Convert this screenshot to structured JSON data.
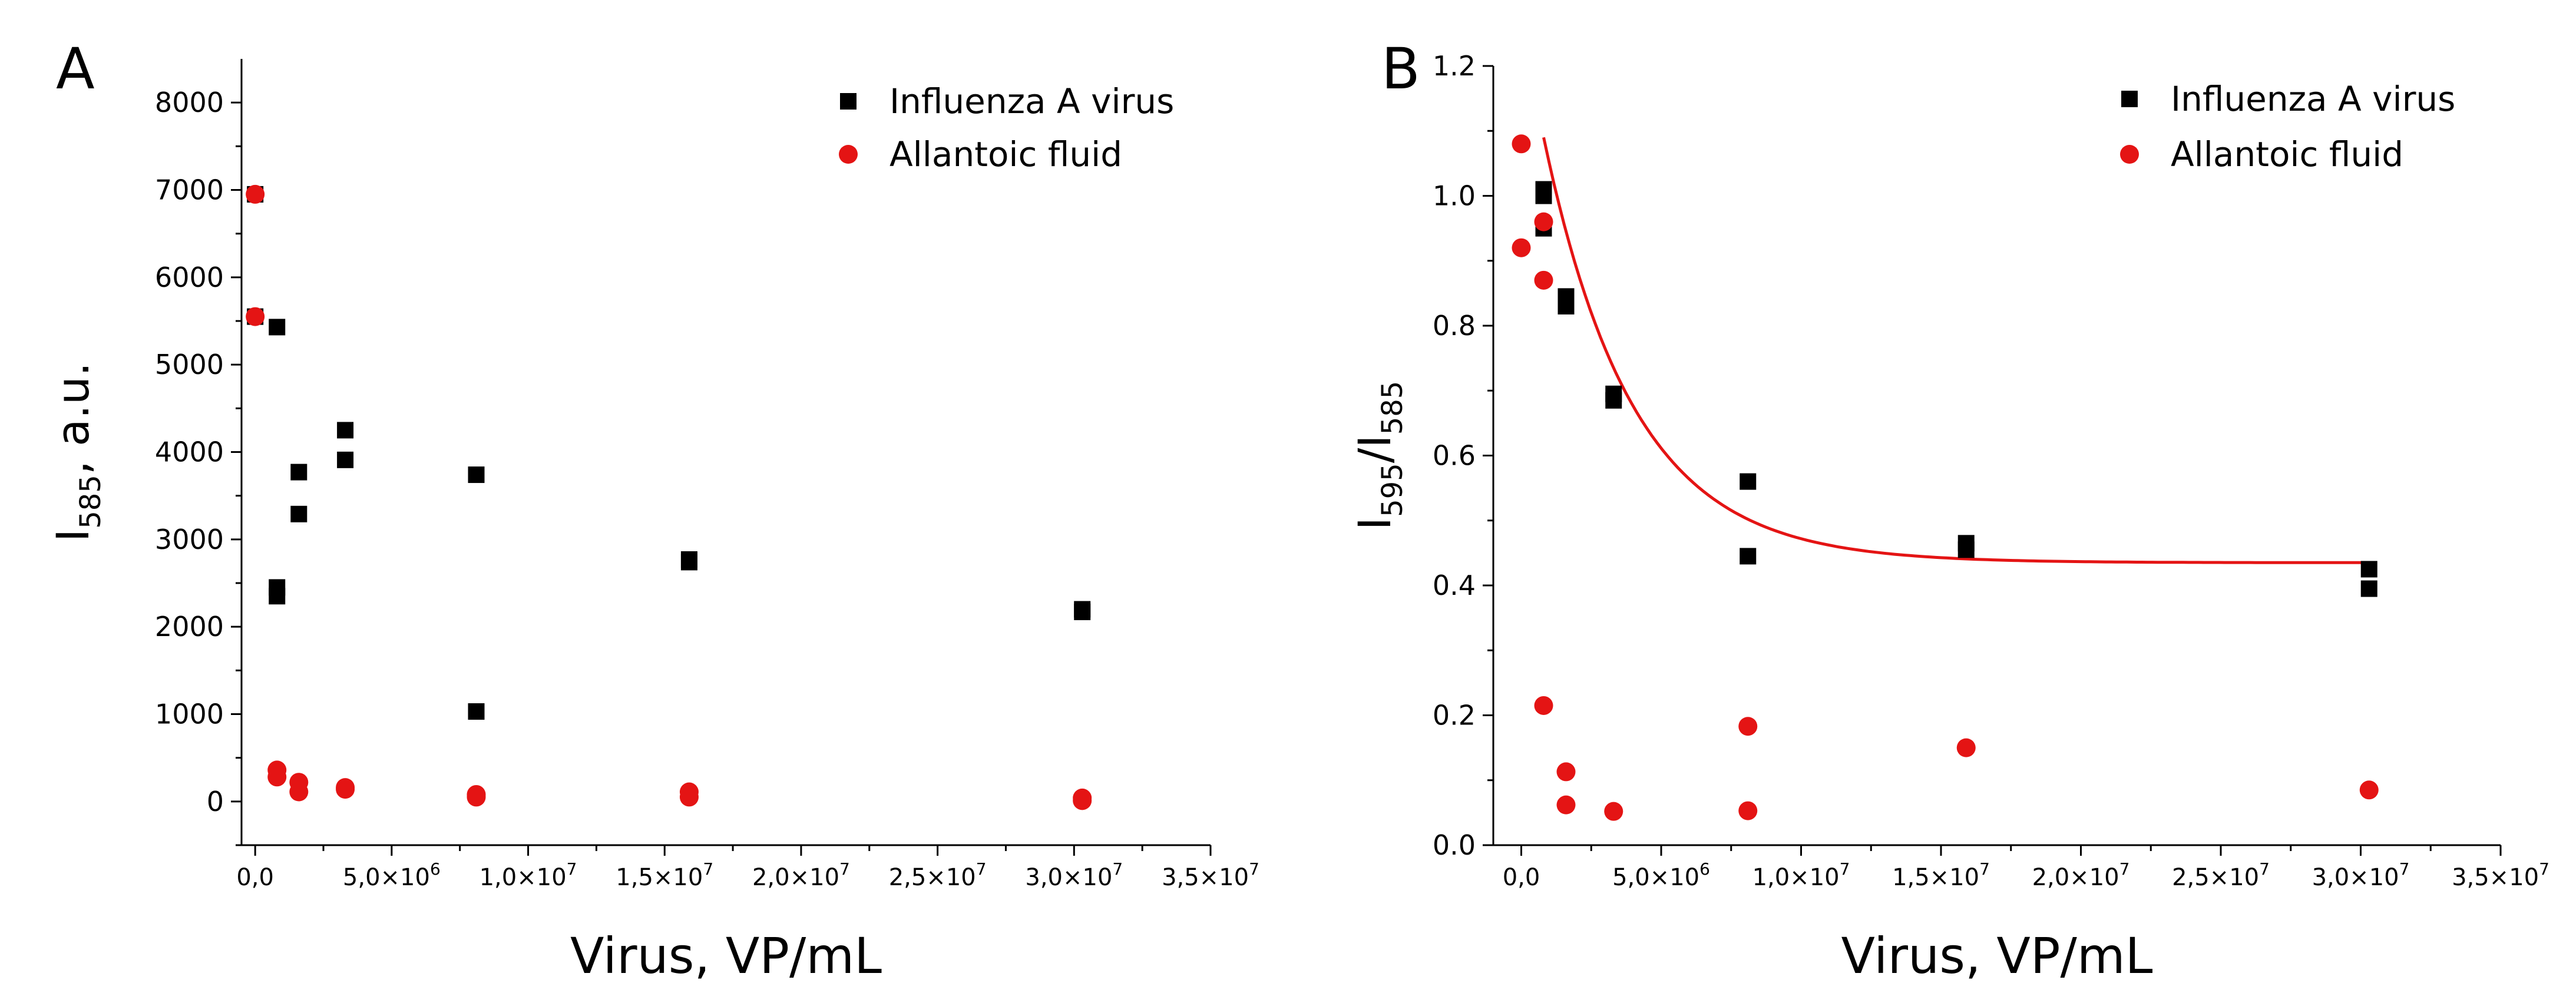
{
  "chart_data": [
    {
      "type": "scatter",
      "panel_label": "A",
      "xlabel": "Virus, VP/mL",
      "ylabel": "I",
      "ylabel_sub": "585",
      "ylabel_suffix": ", a.u.",
      "xlim": [
        -500000,
        35000000
      ],
      "ylim": [
        -500,
        8500
      ],
      "x_ticks": [
        {
          "value": 0,
          "mantissa": "0,0",
          "exp": ""
        },
        {
          "value": 5000000,
          "mantissa": "5,0×10",
          "exp": "6"
        },
        {
          "value": 10000000,
          "mantissa": "1,0×10",
          "exp": "7"
        },
        {
          "value": 15000000,
          "mantissa": "1,5×10",
          "exp": "7"
        },
        {
          "value": 20000000,
          "mantissa": "2,0×10",
          "exp": "7"
        },
        {
          "value": 25000000,
          "mantissa": "2,5×10",
          "exp": "7"
        },
        {
          "value": 30000000,
          "mantissa": "3,0×10",
          "exp": "7"
        },
        {
          "value": 35000000,
          "mantissa": "3,5×10",
          "exp": "7"
        }
      ],
      "y_ticks": [
        {
          "value": 0,
          "label": "0"
        },
        {
          "value": 1000,
          "label": "1000"
        },
        {
          "value": 2000,
          "label": "2000"
        },
        {
          "value": 3000,
          "label": "3000"
        },
        {
          "value": 4000,
          "label": "4000"
        },
        {
          "value": 5000,
          "label": "5000"
        },
        {
          "value": 6000,
          "label": "6000"
        },
        {
          "value": 7000,
          "label": "7000"
        },
        {
          "value": 8000,
          "label": "8000"
        }
      ],
      "legend_position": "top-right",
      "series": [
        {
          "name": "Influenza A virus",
          "marker": "square",
          "color": "#000000",
          "points": [
            [
              0,
              6950
            ],
            [
              0,
              5550
            ],
            [
              800000,
              5430
            ],
            [
              800000,
              2450
            ],
            [
              800000,
              2350
            ],
            [
              1600000,
              3770
            ],
            [
              1600000,
              3290
            ],
            [
              3300000,
              4250
            ],
            [
              3300000,
              3910
            ],
            [
              8100000,
              3740
            ],
            [
              8100000,
              1030
            ],
            [
              15900000,
              2770
            ],
            [
              15900000,
              2740
            ],
            [
              30300000,
              2200
            ],
            [
              30300000,
              2170
            ]
          ]
        },
        {
          "name": "Allantoic fluid",
          "marker": "circle",
          "color": "#e41414",
          "points": [
            [
              0,
              6950
            ],
            [
              0,
              5550
            ],
            [
              800000,
              360
            ],
            [
              800000,
              280
            ],
            [
              1600000,
              220
            ],
            [
              1600000,
              110
            ],
            [
              3300000,
              160
            ],
            [
              3300000,
              140
            ],
            [
              8100000,
              80
            ],
            [
              8100000,
              50
            ],
            [
              15900000,
              110
            ],
            [
              15900000,
              50
            ],
            [
              30300000,
              40
            ],
            [
              30300000,
              10
            ]
          ]
        }
      ]
    },
    {
      "type": "scatter",
      "panel_label": "B",
      "xlabel": "Virus, VP/mL",
      "ylabel": "I",
      "ylabel_sub": "595",
      "ylabel_mid": "/I",
      "ylabel_sub2": "585",
      "xlim": [
        -1000000,
        35000000
      ],
      "ylim": [
        0,
        1.2
      ],
      "x_ticks": [
        {
          "value": 0,
          "mantissa": "0,0",
          "exp": ""
        },
        {
          "value": 5000000,
          "mantissa": "5,0×10",
          "exp": "6"
        },
        {
          "value": 10000000,
          "mantissa": "1,0×10",
          "exp": "7"
        },
        {
          "value": 15000000,
          "mantissa": "1,5×10",
          "exp": "7"
        },
        {
          "value": 20000000,
          "mantissa": "2,0×10",
          "exp": "7"
        },
        {
          "value": 25000000,
          "mantissa": "2,5×10",
          "exp": "7"
        },
        {
          "value": 30000000,
          "mantissa": "3,0×10",
          "exp": "7"
        },
        {
          "value": 35000000,
          "mantissa": "3,5×10",
          "exp": "7"
        }
      ],
      "y_ticks": [
        {
          "value": 0,
          "label": "0.0"
        },
        {
          "value": 0.2,
          "label": "0.2"
        },
        {
          "value": 0.4,
          "label": "0.4"
        },
        {
          "value": 0.6,
          "label": "0.6"
        },
        {
          "value": 0.8,
          "label": "0.8"
        },
        {
          "value": 1.0,
          "label": "1.0"
        },
        {
          "value": 1.2,
          "label": "1.2"
        }
      ],
      "legend_position": "top-right",
      "series": [
        {
          "name": "Influenza A virus",
          "marker": "square",
          "color": "#000000",
          "points": [
            [
              800000,
              1.01
            ],
            [
              800000,
              1.0
            ],
            [
              800000,
              0.95
            ],
            [
              1600000,
              0.845
            ],
            [
              1600000,
              0.83
            ],
            [
              3300000,
              0.695
            ],
            [
              3300000,
              0.685
            ],
            [
              8100000,
              0.56
            ],
            [
              8100000,
              0.445
            ],
            [
              15900000,
              0.465
            ],
            [
              15900000,
              0.455
            ],
            [
              30300000,
              0.425
            ],
            [
              30300000,
              0.395
            ]
          ]
        },
        {
          "name": "Allantoic fluid",
          "marker": "circle",
          "color": "#e41414",
          "points": [
            [
              0,
              1.08
            ],
            [
              0,
              0.92
            ],
            [
              800000,
              0.96
            ],
            [
              800000,
              0.87
            ],
            [
              800000,
              0.215
            ],
            [
              1600000,
              0.113
            ],
            [
              1600000,
              0.062
            ],
            [
              3300000,
              0.052
            ],
            [
              8100000,
              0.183
            ],
            [
              8100000,
              0.053
            ],
            [
              15900000,
              0.15
            ],
            [
              30300000,
              0.085
            ]
          ]
        }
      ],
      "fit_curve": {
        "name": "exponential decay fit",
        "color": "#e41414",
        "x_start": 800000,
        "x_end": 30300000,
        "y0": 0.435,
        "amplitude": 0.655,
        "x_offset": 800000,
        "decay_constant": 3200000
      }
    }
  ]
}
